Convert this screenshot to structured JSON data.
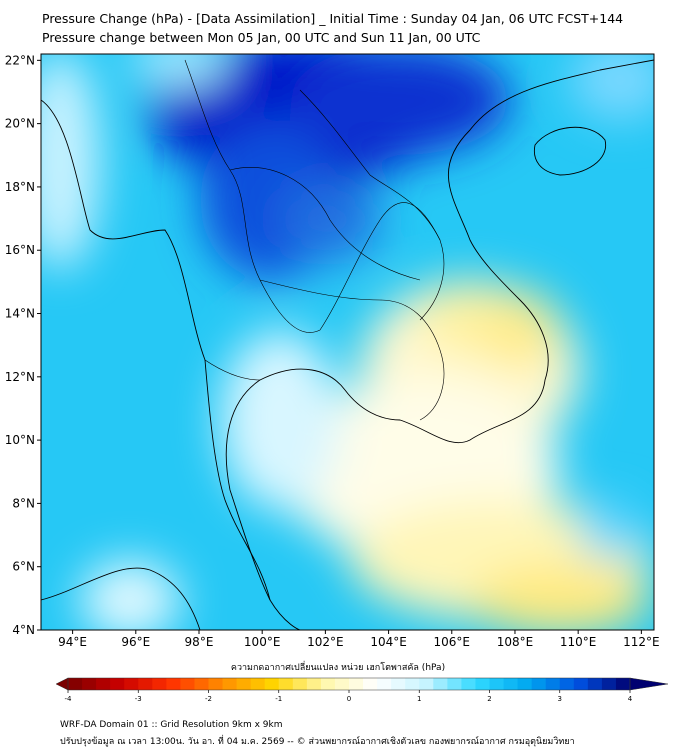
{
  "title_line1": "Pressure Change (hPa) - [Data Assimilation] _ Initial Time : Sunday 04 Jan, 06 UTC FCST+144",
  "title_line2": "Pressure change between Mon 05 Jan, 00 UTC and Sun 11 Jan, 00 UTC",
  "lat_labels": [
    "22°N",
    "20°N",
    "18°N",
    "16°N",
    "14°N",
    "12°N",
    "10°N",
    "8°N",
    "6°N",
    "4°N"
  ],
  "lon_labels": [
    "94°E",
    "96°E",
    "98°E",
    "100°E",
    "102°E",
    "104°E",
    "106°E",
    "108°E",
    "110°E",
    "112°E"
  ],
  "lat_values": [
    22,
    20,
    18,
    16,
    14,
    12,
    10,
    8,
    6,
    4
  ],
  "lon_values": [
    94,
    96,
    98,
    100,
    102,
    104,
    106,
    108,
    110,
    112
  ],
  "colorbar": {
    "label": "ความกดอากาศเปลี่ยนแปลง หน่วย เฮกโตพาสคัล (hPa)",
    "ticks": [
      "-4",
      "-3",
      "-2",
      "-1",
      "0",
      "1",
      "2",
      "3",
      "4"
    ],
    "tick_values": [
      -4,
      -3,
      -2,
      -1,
      0,
      1,
      2,
      3,
      4
    ],
    "range": [
      -4,
      4
    ],
    "colors": [
      "#7a0000",
      "#c80000",
      "#ff3000",
      "#ff8c00",
      "#ffd400",
      "#fff7a8",
      "#ffffff",
      "#c8f4ff",
      "#30d8ff",
      "#00a8f0",
      "#0050e0",
      "#000070"
    ]
  },
  "footer_line1": "WRF-DA Domain 01 :: Grid Resolution 9km x 9km",
  "footer_line2": "ปรับปรุงข้อมูล ณ เวลา 13:00น. วัน อา. ที่ 04 ม.ค. 2569 -- © ส่วนพยากรณ์อากาศเชิงตัวเลข กองพยากรณ์อากาศ กรมอุตุนิยมวิทยา"
}
